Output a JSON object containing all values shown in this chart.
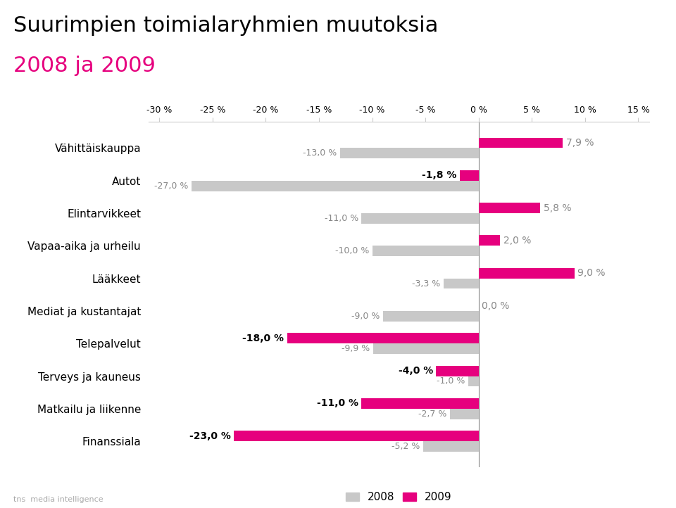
{
  "title_line1": "Suurimpien toimialaryhmien muutoksia",
  "title_line2": "2008 ja 2009",
  "title_line1_color": "#000000",
  "title_line2_color": "#e6007e",
  "categories": [
    "Vähittäiskauppa",
    "Autot",
    "Elintarvikkeet",
    "Vapaa-aika ja urheilu",
    "Lääkkeet",
    "Mediat ja kustantajat",
    "Telepalvelut",
    "Terveys ja kauneus",
    "Matkailu ja liikenne",
    "Finanssiala"
  ],
  "values_2008": [
    -13.0,
    -27.0,
    -11.0,
    -10.0,
    -3.3,
    -9.0,
    -9.9,
    -1.0,
    -2.7,
    -5.2
  ],
  "values_2009": [
    7.9,
    -1.8,
    5.8,
    2.0,
    9.0,
    0.0,
    -18.0,
    -4.0,
    -11.0,
    -23.0
  ],
  "color_2008": "#c8c8c8",
  "color_2009": "#e6007e",
  "xlim": [
    -31,
    16
  ],
  "xticks": [
    -30,
    -25,
    -20,
    -15,
    -10,
    -5,
    0,
    5,
    10,
    15
  ],
  "xtick_labels": [
    "-30 %",
    "-25 %",
    "-20 %",
    "-15 %",
    "-10 %",
    "-5 %",
    "0 %",
    "5 %",
    "10 %",
    "15 %"
  ],
  "legend_2008": "2008",
  "legend_2009": "2009",
  "background_color": "#ffffff",
  "bar_height": 0.32,
  "label_fontsize_2009": 10,
  "label_fontsize_2008": 9,
  "category_fontsize": 11,
  "title_fontsize1": 22,
  "title_fontsize2": 22,
  "label_color_2009_neg": "#000000",
  "label_color_2009_pos": "#888888",
  "label_color_2008": "#888888"
}
